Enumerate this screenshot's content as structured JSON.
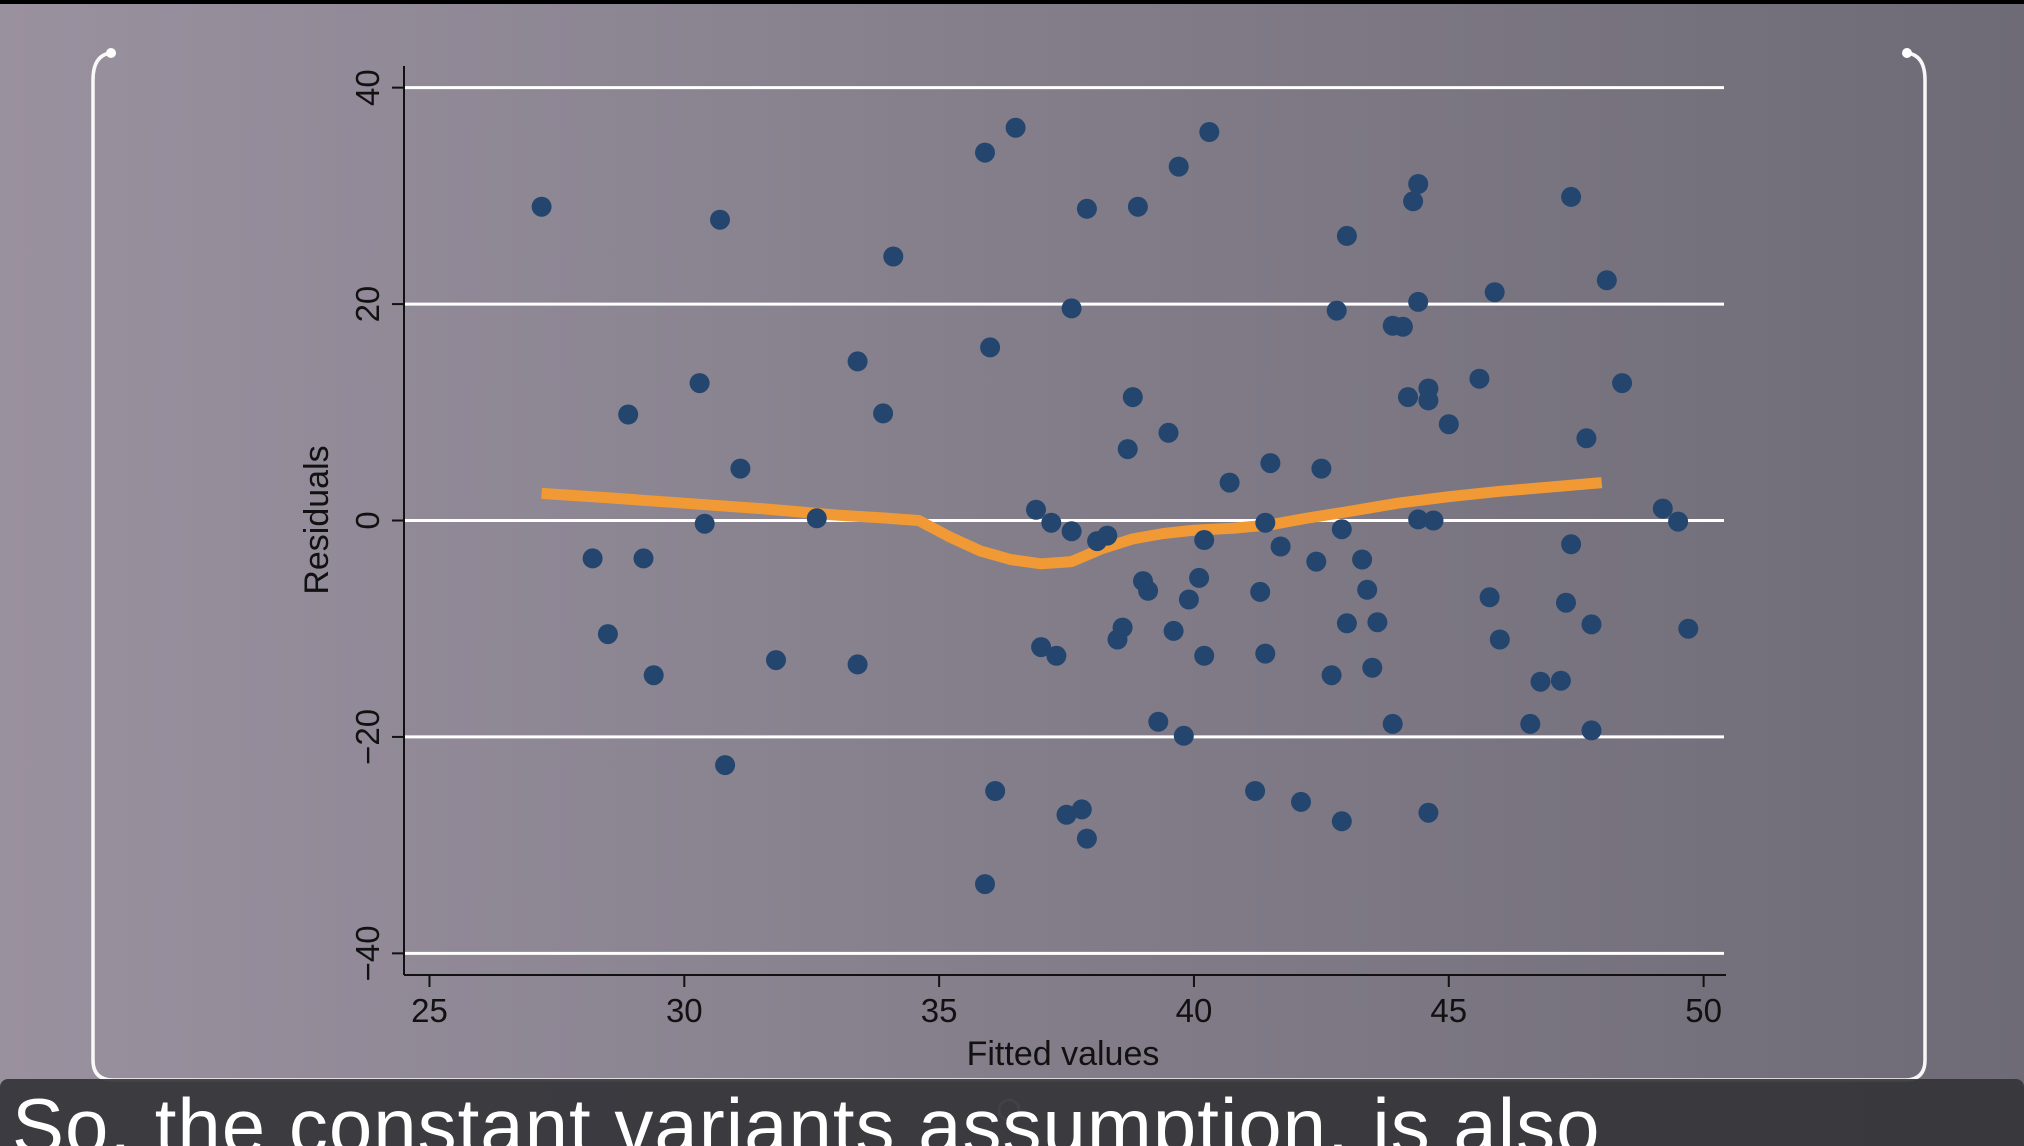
{
  "caption": {
    "text": "So, the constant variants assumption, is also"
  },
  "colors": {
    "background_left": "#9a919f",
    "background_right": "#6e6b76",
    "point": "#24466e",
    "smooth_line": "#f19a35",
    "grid": "#ffffff",
    "axis": "#111111",
    "frame": "#ffffff"
  },
  "chart_data": {
    "type": "scatter",
    "title": "",
    "xlabel": "Fitted values",
    "ylabel": "Residuals",
    "xlim": [
      24.5,
      50.4
    ],
    "ylim": [
      -42,
      42
    ],
    "xticks": [
      25,
      30,
      35,
      40,
      45,
      50
    ],
    "yticks": [
      -40,
      -20,
      0,
      20,
      40
    ],
    "grid": "horizontal",
    "legend": "none",
    "series": [
      {
        "kind": "points",
        "x": [
          27.2,
          28.2,
          28.5,
          28.9,
          29.2,
          29.4,
          30.3,
          30.4,
          30.7,
          30.8,
          31.1,
          31.8,
          32.6,
          33.4,
          33.4,
          33.9,
          34.1,
          35.9,
          35.9,
          36.0,
          36.1,
          36.5,
          36.9,
          37.0,
          37.2,
          37.3,
          37.5,
          37.6,
          37.6,
          37.8,
          37.9,
          37.9,
          38.1,
          38.3,
          38.5,
          38.6,
          38.7,
          38.8,
          38.9,
          39.0,
          39.1,
          39.3,
          39.5,
          39.6,
          39.7,
          39.8,
          39.9,
          40.1,
          40.2,
          40.2,
          40.3,
          40.7,
          41.2,
          41.3,
          41.4,
          41.4,
          41.5,
          41.7,
          42.1,
          42.4,
          42.5,
          42.7,
          42.8,
          42.9,
          42.9,
          43.0,
          43.0,
          43.3,
          43.4,
          43.5,
          43.6,
          43.9,
          43.9,
          44.1,
          44.2,
          44.3,
          44.4,
          44.4,
          44.4,
          44.6,
          44.6,
          44.6,
          44.7,
          45.0,
          45.6,
          45.8,
          45.9,
          46.0,
          46.6,
          46.8,
          47.2,
          47.3,
          47.4,
          47.4,
          47.7,
          47.8,
          47.8,
          48.1,
          48.4,
          49.2,
          49.5,
          49.7
        ],
        "y": [
          29.0,
          -3.5,
          -10.5,
          9.8,
          -3.5,
          -14.3,
          12.7,
          -0.3,
          27.8,
          -22.6,
          4.8,
          -12.9,
          0.2,
          14.7,
          -13.3,
          9.9,
          24.4,
          34.0,
          -33.6,
          16.0,
          -25.0,
          36.3,
          1.0,
          -11.7,
          -0.2,
          -12.5,
          -27.2,
          -1.0,
          19.6,
          -26.7,
          -29.4,
          28.8,
          -1.9,
          -1.4,
          -11.0,
          -9.9,
          6.6,
          11.4,
          29.0,
          -5.6,
          -6.5,
          -18.6,
          8.1,
          -10.2,
          32.7,
          -19.9,
          -7.3,
          -5.3,
          -12.5,
          -1.8,
          35.9,
          3.5,
          -25.0,
          -6.6,
          -0.2,
          -12.3,
          5.3,
          -2.4,
          -26.0,
          -3.8,
          4.8,
          -14.3,
          19.4,
          -0.8,
          -27.8,
          -9.5,
          26.3,
          -3.6,
          -6.4,
          -13.6,
          -9.4,
          18.0,
          -18.8,
          17.9,
          11.4,
          29.5,
          0.1,
          20.2,
          31.1,
          12.2,
          11.1,
          -27.0,
          0.0,
          8.9,
          13.1,
          -7.1,
          21.1,
          -11.0,
          -18.8,
          -14.9,
          -14.8,
          -7.6,
          29.9,
          -2.2,
          7.6,
          -19.4,
          -9.6,
          22.2,
          12.7,
          1.1,
          -0.1,
          -10.0
        ]
      },
      {
        "kind": "smooth",
        "x": [
          27.2,
          28.5,
          30.0,
          31.5,
          33.0,
          34.0,
          34.6,
          35.2,
          35.8,
          36.4,
          37.0,
          37.6,
          38.2,
          38.8,
          39.4,
          40.0,
          40.8,
          41.5,
          42.2,
          43.0,
          44.0,
          45.0,
          46.0,
          47.0,
          48.0
        ],
        "y": [
          2.5,
          2.1,
          1.6,
          1.1,
          0.5,
          0.2,
          0.0,
          -1.5,
          -2.8,
          -3.6,
          -4.0,
          -3.8,
          -2.6,
          -1.7,
          -1.2,
          -0.9,
          -0.7,
          -0.4,
          0.2,
          0.8,
          1.6,
          2.2,
          2.7,
          3.1,
          3.5
        ]
      }
    ]
  }
}
